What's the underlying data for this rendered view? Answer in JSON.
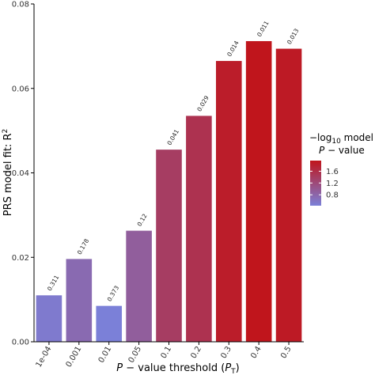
{
  "chart_data": {
    "type": "bar",
    "categories": [
      "1e-04",
      "0.001",
      "0.01",
      "0.05",
      "0.1",
      "0.2",
      "0.3",
      "0.4",
      "0.5"
    ],
    "values": [
      0.011,
      0.0196,
      0.0085,
      0.0263,
      0.0455,
      0.0535,
      0.0665,
      0.0712,
      0.0694
    ],
    "bar_labels": [
      "0.311",
      "0.178",
      "0.373",
      "0.12",
      "0.041",
      "0.029",
      "0.014",
      "0.011",
      "0.013"
    ],
    "neg_log10_p": [
      0.51,
      0.75,
      0.43,
      0.92,
      1.39,
      1.54,
      1.85,
      1.96,
      1.89
    ],
    "ylim": [
      0,
      0.08
    ],
    "yticks": [
      "0.00",
      "0.02",
      "0.04",
      "0.06",
      "0.08"
    ],
    "ytick_values": [
      0,
      0.02,
      0.04,
      0.06,
      0.08
    ],
    "xlabel": {
      "a": "P",
      "b": " − value threshold (",
      "c": "P",
      "d": "T",
      "e": ")"
    },
    "ylabel": {
      "a": "PRS model fit:  R",
      "b": "2"
    },
    "legend": {
      "title_line1": {
        "a": "−log",
        "b": "10",
        "c": " model"
      },
      "title_line2": {
        "a": "P",
        "b": " − value"
      },
      "ticks": [
        "0.8",
        "1.2",
        "1.6"
      ],
      "tick_values": [
        0.8,
        1.2,
        1.6
      ],
      "range": [
        0.43,
        1.96
      ],
      "position": "right"
    },
    "colors": {
      "low": "#7b80d8",
      "high": "#c0151c"
    },
    "grid": false
  }
}
